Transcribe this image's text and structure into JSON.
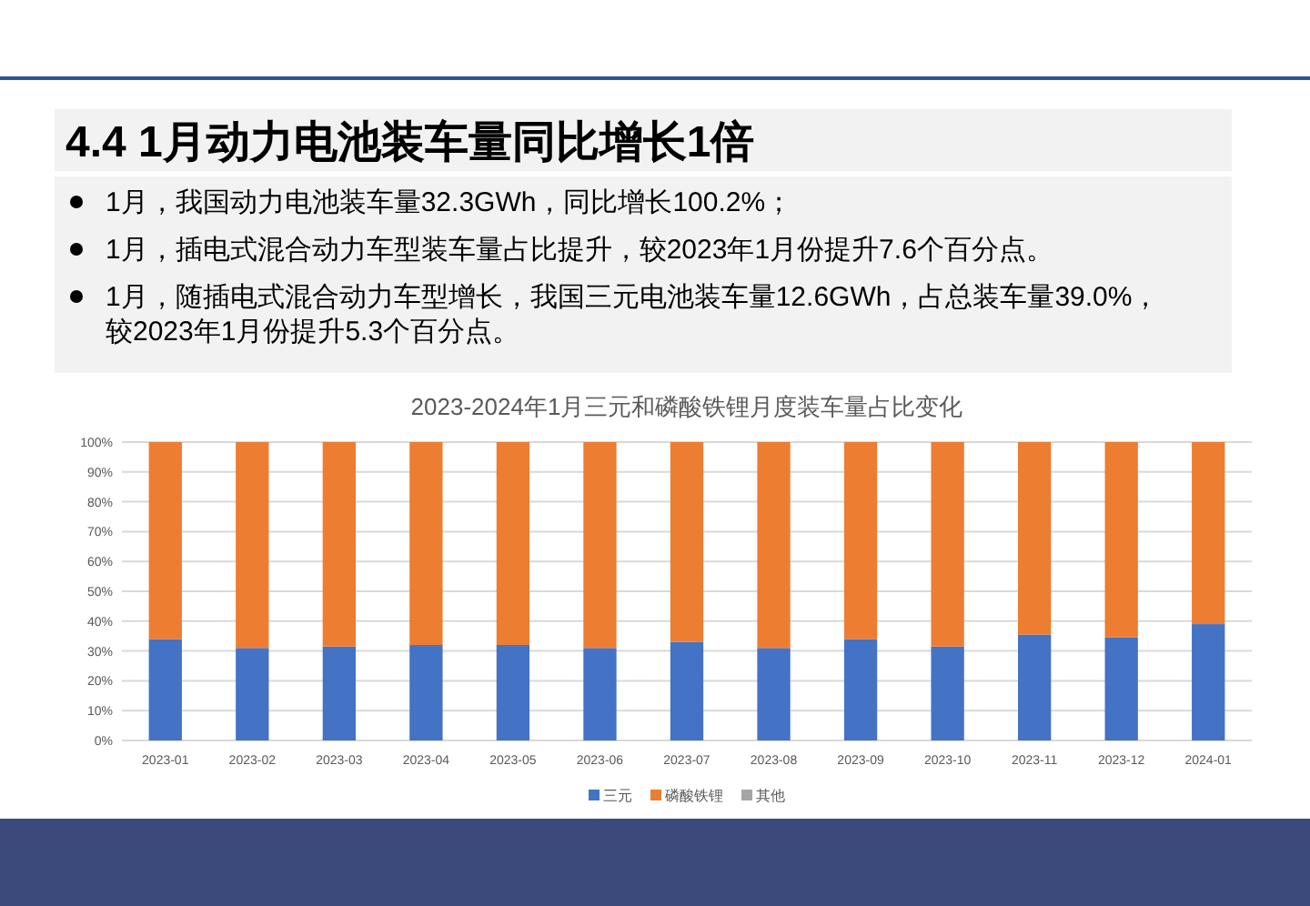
{
  "chart_data": {
    "type": "bar",
    "stacked": true,
    "title": "2023-2024年1月三元和磷酸铁锂月度装车量占比变化",
    "annotations": [
      "4.4 1月动力电池装车量同比增长1倍",
      "1月，我国动力电池装车量32.3GWh，同比增长100.2%；",
      "1月，插电式混合动力车型装车量占比提升，较2023年1月份提升7.6个百分点。",
      "1月，随插电式混合动力车型增长，我国三元电池装车量12.6GWh，占总装车量39.0%，较2023年1月份提升5.3个百分点。"
    ],
    "categories": [
      "2023-01",
      "2023-02",
      "2023-03",
      "2023-04",
      "2023-05",
      "2023-06",
      "2023-07",
      "2023-08",
      "2023-09",
      "2023-10",
      "2023-11",
      "2023-12",
      "2024-01"
    ],
    "series": [
      {
        "name": "三元",
        "color": "#4472c4",
        "values": [
          34,
          31,
          31.5,
          32,
          32,
          31,
          33,
          31,
          34,
          31.5,
          35.5,
          34.5,
          39
        ]
      },
      {
        "name": "磷酸铁锂",
        "color": "#ed7d31",
        "values": [
          66,
          69,
          68.5,
          68,
          68,
          69,
          67,
          69,
          66,
          68.5,
          64.5,
          65.5,
          61
        ]
      },
      {
        "name": "其他",
        "color": "#a5a5a5",
        "values": [
          0,
          0,
          0,
          0,
          0,
          0,
          0,
          0,
          0,
          0,
          0,
          0,
          0
        ]
      }
    ],
    "ylim": [
      0,
      100
    ],
    "yticks": [
      {
        "value": 0,
        "label": "0%"
      },
      {
        "value": 10,
        "label": "10%"
      },
      {
        "value": 20,
        "label": "20%"
      },
      {
        "value": 30,
        "label": "30%"
      },
      {
        "value": 40,
        "label": "40%"
      },
      {
        "value": 50,
        "label": "50%"
      },
      {
        "value": 60,
        "label": "60%"
      },
      {
        "value": 70,
        "label": "70%"
      },
      {
        "value": 80,
        "label": "80%"
      },
      {
        "value": 90,
        "label": "90%"
      },
      {
        "value": 100,
        "label": "100%"
      }
    ],
    "grid": "y",
    "legend": "bottom"
  }
}
